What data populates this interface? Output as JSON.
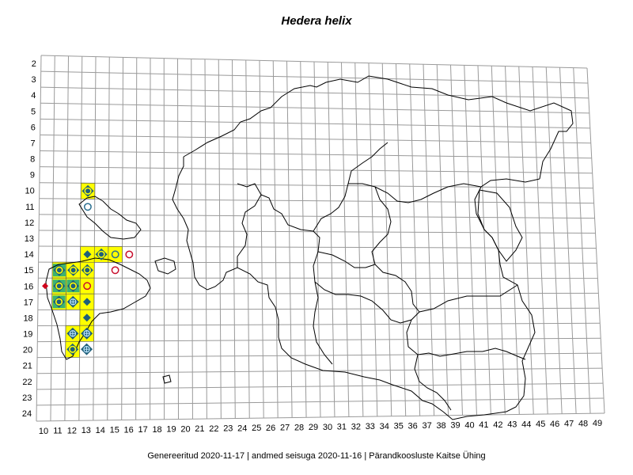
{
  "title": "Hedera helix",
  "footer": "Genereeritud 2020-11-17  |  andmed seisuga 2020-11-16  |  Pärandkoosluste Kaitse Ühing",
  "grid": {
    "rows": [
      "2",
      "3",
      "4",
      "5",
      "6",
      "7",
      "8",
      "9",
      "10",
      "11",
      "12",
      "13",
      "14",
      "15",
      "16",
      "17",
      "18",
      "19",
      "20",
      "21",
      "22",
      "23",
      "24"
    ],
    "cols": [
      "10",
      "11",
      "12",
      "13",
      "14",
      "15",
      "16",
      "17",
      "18",
      "19",
      "20",
      "21",
      "22",
      "23",
      "24",
      "25",
      "26",
      "27",
      "28",
      "29",
      "30",
      "31",
      "32",
      "33",
      "34",
      "35",
      "36",
      "37",
      "38",
      "39",
      "40",
      "41",
      "42",
      "43",
      "44",
      "45",
      "46",
      "47",
      "48",
      "49"
    ]
  },
  "colors": {
    "grid": "#9a9a9a",
    "highlight": "#ffff00",
    "green_square": "#3cb371",
    "diamond": "#1f5f7a",
    "circle_blue": "#2a6f90",
    "circle_red": "#c8102e",
    "red_diamond": "#d0021b",
    "outline": "#000000"
  },
  "highlighted_cells": [
    {
      "col": 13,
      "row": 10
    },
    {
      "col": 13,
      "row": 14
    },
    {
      "col": 14,
      "row": 14
    },
    {
      "col": 15,
      "row": 14
    },
    {
      "col": 11,
      "row": 15
    },
    {
      "col": 12,
      "row": 15
    },
    {
      "col": 13,
      "row": 15
    },
    {
      "col": 11,
      "row": 16
    },
    {
      "col": 12,
      "row": 16
    },
    {
      "col": 13,
      "row": 16
    },
    {
      "col": 11,
      "row": 17
    },
    {
      "col": 12,
      "row": 17
    },
    {
      "col": 13,
      "row": 17
    },
    {
      "col": 13,
      "row": 18
    },
    {
      "col": 12,
      "row": 19
    },
    {
      "col": 13,
      "row": 19
    },
    {
      "col": 12,
      "row": 20
    }
  ],
  "green_cells": [
    {
      "col": 11,
      "row": 15
    },
    {
      "col": 11,
      "row": 16
    },
    {
      "col": 11,
      "row": 17
    },
    {
      "col": 12,
      "row": 16
    }
  ],
  "markers": [
    {
      "col": 13,
      "row": 10,
      "type": "diamond-circle"
    },
    {
      "col": 13,
      "row": 11,
      "type": "circle-blue"
    },
    {
      "col": 13,
      "row": 14,
      "type": "diamond-small"
    },
    {
      "col": 14,
      "row": 14,
      "type": "diamond-circle"
    },
    {
      "col": 15,
      "row": 14,
      "type": "circle-blue"
    },
    {
      "col": 16,
      "row": 14,
      "type": "circle-red"
    },
    {
      "col": 15,
      "row": 15,
      "type": "circle-red"
    },
    {
      "col": 11,
      "row": 15,
      "type": "diamond-circle"
    },
    {
      "col": 12,
      "row": 15,
      "type": "diamond-circle"
    },
    {
      "col": 13,
      "row": 15,
      "type": "diamond-circle"
    },
    {
      "col": 11,
      "row": 16,
      "type": "diamond-circle"
    },
    {
      "col": 12,
      "row": 16,
      "type": "diamond-circle"
    },
    {
      "col": 13,
      "row": 16,
      "type": "circle-red"
    },
    {
      "col": 11,
      "row": 17,
      "type": "diamond-circle"
    },
    {
      "col": 12,
      "row": 17,
      "type": "diamond-cross"
    },
    {
      "col": 13,
      "row": 17,
      "type": "diamond-small"
    },
    {
      "col": 13,
      "row": 18,
      "type": "diamond-small"
    },
    {
      "col": 12,
      "row": 19,
      "type": "diamond-cross"
    },
    {
      "col": 13,
      "row": 19,
      "type": "diamond-cross"
    },
    {
      "col": 12,
      "row": 20,
      "type": "diamond-circle"
    },
    {
      "col": 13,
      "row": 20,
      "type": "diamond-cross"
    },
    {
      "col": 10,
      "row": 16,
      "type": "red-diamond"
    }
  ]
}
